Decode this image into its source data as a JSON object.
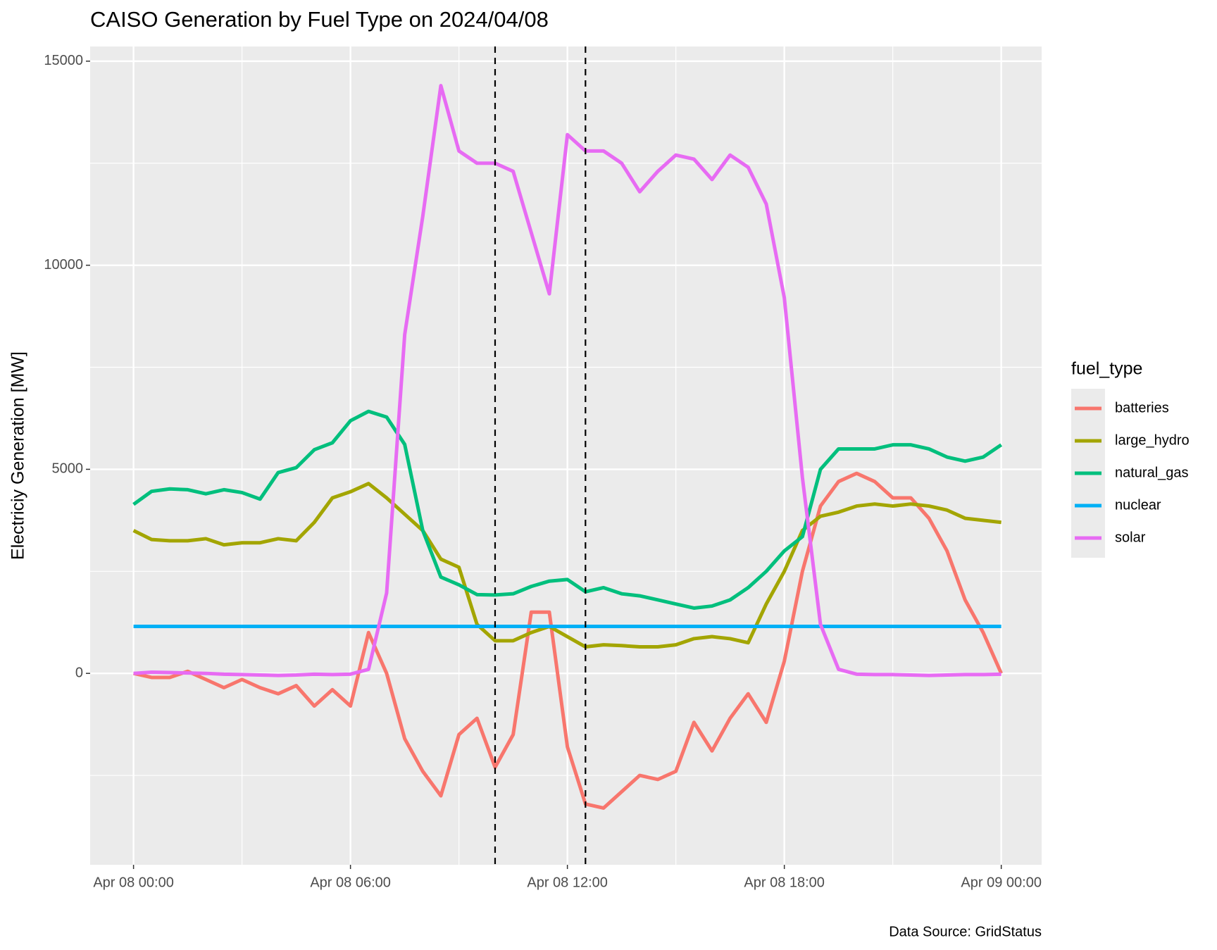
{
  "chart_data": {
    "type": "line",
    "title": "CAISO Generation by Fuel Type on 2024/04/08",
    "y_label": "Electriciy Generation [MW]",
    "caption": "Data Source: GridStatus",
    "legend_title": "fuel_type",
    "legend_position": "right",
    "grid": true,
    "xlim": [
      "Apr 07 22:48",
      "Apr 09 01:07"
    ],
    "xticks": [
      "Apr 08 00:00",
      "Apr 08 06:00",
      "Apr 08 12:00",
      "Apr 08 18:00",
      "Apr 09 00:00"
    ],
    "xminorticks": [
      "Apr 08 03:00",
      "Apr 08 09:00",
      "Apr 08 15:00",
      "Apr 08 21:00"
    ],
    "ylim": [
      -4690,
      15360
    ],
    "yticks": [
      0,
      5000,
      10000,
      15000
    ],
    "yminorticks": [
      -2500,
      2500,
      7500,
      12500
    ],
    "vlines": [
      "Apr 08 10:00",
      "Apr 08 12:30"
    ],
    "x": [
      "Apr 08 00:00",
      "Apr 08 00:30",
      "Apr 08 01:00",
      "Apr 08 01:30",
      "Apr 08 02:00",
      "Apr 08 02:30",
      "Apr 08 03:00",
      "Apr 08 03:30",
      "Apr 08 04:00",
      "Apr 08 04:30",
      "Apr 08 05:00",
      "Apr 08 05:30",
      "Apr 08 06:00",
      "Apr 08 06:30",
      "Apr 08 07:00",
      "Apr 08 07:30",
      "Apr 08 08:00",
      "Apr 08 08:30",
      "Apr 08 09:00",
      "Apr 08 09:30",
      "Apr 08 10:00",
      "Apr 08 10:30",
      "Apr 08 11:00",
      "Apr 08 11:30",
      "Apr 08 12:00",
      "Apr 08 12:30",
      "Apr 08 13:00",
      "Apr 08 13:30",
      "Apr 08 14:00",
      "Apr 08 14:30",
      "Apr 08 15:00",
      "Apr 08 15:30",
      "Apr 08 16:00",
      "Apr 08 16:30",
      "Apr 08 17:00",
      "Apr 08 17:30",
      "Apr 08 18:00",
      "Apr 08 18:30",
      "Apr 08 19:00",
      "Apr 08 19:30",
      "Apr 08 20:00",
      "Apr 08 20:30",
      "Apr 08 21:00",
      "Apr 08 21:30",
      "Apr 08 22:00",
      "Apr 08 22:30",
      "Apr 08 23:00",
      "Apr 08 23:30",
      "Apr 09 00:00"
    ],
    "series": [
      {
        "name": "batteries",
        "color": "#F8766D",
        "values": [
          0,
          -100,
          -100,
          50,
          -150,
          -350,
          -150,
          -350,
          -500,
          -300,
          -800,
          -400,
          -800,
          1000,
          0,
          -1600,
          -2400,
          -3000,
          -1500,
          -1100,
          -2300,
          -1500,
          1500,
          1500,
          -1800,
          -3200,
          -3300,
          -2900,
          -2500,
          -2600,
          -2400,
          -1200,
          -1900,
          -1100,
          -500,
          -1200,
          300,
          2500,
          4100,
          4700,
          4900,
          4700,
          4300,
          4300,
          3800,
          3000,
          1800,
          1000,
          0
        ]
      },
      {
        "name": "large_hydro",
        "color": "#A3A500",
        "values": [
          3500,
          3280,
          3250,
          3250,
          3300,
          3150,
          3200,
          3200,
          3300,
          3250,
          3700,
          4300,
          4450,
          4650,
          4300,
          3900,
          3500,
          2800,
          2600,
          1200,
          800,
          800,
          1000,
          1150,
          900,
          650,
          700,
          680,
          650,
          650,
          700,
          850,
          900,
          850,
          750,
          1700,
          2500,
          3500,
          3850,
          3950,
          4100,
          4150,
          4100,
          4150,
          4100,
          4000,
          3800,
          3750,
          3700
        ]
      },
      {
        "name": "natural_gas",
        "color": "#00BF7D",
        "values": [
          4140,
          4460,
          4520,
          4500,
          4400,
          4500,
          4430,
          4270,
          4920,
          5040,
          5480,
          5650,
          6190,
          6420,
          6280,
          5610,
          3500,
          2360,
          2170,
          1930,
          1920,
          1950,
          2130,
          2260,
          2300,
          2000,
          2100,
          1950,
          1900,
          1800,
          1700,
          1600,
          1650,
          1800,
          2100,
          2500,
          3000,
          3350,
          5000,
          5500,
          5500,
          5500,
          5600,
          5600,
          5500,
          5300,
          5200,
          5300,
          5600
        ]
      },
      {
        "name": "nuclear",
        "color": "#00B0F6",
        "values": [
          1150,
          1150,
          1150,
          1150,
          1150,
          1150,
          1150,
          1150,
          1150,
          1150,
          1150,
          1150,
          1150,
          1150,
          1150,
          1150,
          1150,
          1150,
          1150,
          1150,
          1150,
          1150,
          1150,
          1150,
          1150,
          1150,
          1150,
          1150,
          1150,
          1150,
          1150,
          1150,
          1150,
          1150,
          1150,
          1150,
          1150,
          1150,
          1150,
          1150,
          1150,
          1150,
          1150,
          1150,
          1150,
          1150,
          1150,
          1150,
          1150
        ]
      },
      {
        "name": "solar",
        "color": "#E76BF3",
        "values": [
          0,
          30,
          20,
          10,
          0,
          -20,
          -30,
          -40,
          -50,
          -40,
          -20,
          -30,
          -20,
          100,
          1970,
          8300,
          11200,
          14400,
          12800,
          12500,
          12500,
          12300,
          10800,
          9300,
          13200,
          12800,
          12800,
          12500,
          11800,
          12300,
          12700,
          12600,
          12100,
          12700,
          12400,
          11500,
          9200,
          4800,
          1200,
          100,
          -20,
          -30,
          -30,
          -40,
          -50,
          -40,
          -30,
          -30,
          -20
        ]
      }
    ]
  }
}
